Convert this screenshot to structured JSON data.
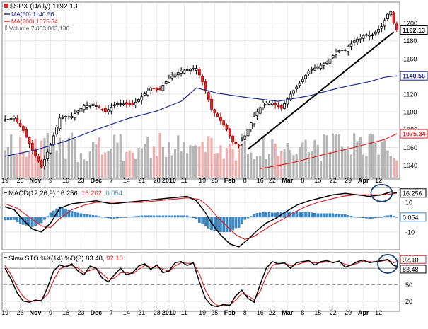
{
  "chart_data": [
    {
      "type": "candlestick",
      "symbol_label": "$SPX (Daily)",
      "last_value": "1192.13",
      "legend": [
        {
          "label": "MA(50)",
          "value": "1140.56",
          "color": "#1f2a8c"
        },
        {
          "label": "MA(200)",
          "value": "1075.34",
          "color": "#d8262b"
        },
        {
          "label": "Volume",
          "value": "7,063,003,136",
          "color": "#a9a9a9"
        }
      ],
      "price_axis": {
        "ticks": [
          1040,
          1060,
          1080,
          1100,
          1120,
          1140,
          1160,
          1180,
          1200
        ],
        "range": [
          1026,
          1222
        ],
        "markers": [
          {
            "text": "1192.13",
            "value": 1192.13,
            "color": "#000000"
          },
          {
            "text": "1140.56",
            "value": 1140.56,
            "color": "#1f2a8c"
          },
          {
            "text": "1075.34",
            "value": 1075.34,
            "color": "#d8262b"
          }
        ]
      },
      "x_labels": [
        "19",
        "26",
        "Nov",
        "9",
        "16",
        "23",
        "Dec",
        "7",
        "14",
        "21",
        "28",
        "2010",
        "11",
        "19",
        "25",
        "Feb",
        "8",
        "16",
        "22",
        "Mar",
        "8",
        "15",
        "22",
        "29",
        "Apr",
        "12"
      ],
      "x_label_days": [
        0,
        5,
        10,
        15,
        20,
        25,
        30,
        35,
        40,
        45,
        50,
        54,
        59,
        65,
        69,
        74,
        79,
        84,
        88,
        93,
        98,
        103,
        108,
        113,
        118,
        123
      ],
      "days": 130,
      "closes_pairs": [
        [
          0,
          1090
        ],
        [
          3,
          1094
        ],
        [
          6,
          1079
        ],
        [
          9,
          1057
        ],
        [
          12,
          1038
        ],
        [
          15,
          1063
        ],
        [
          18,
          1093
        ],
        [
          22,
          1095
        ],
        [
          26,
          1107
        ],
        [
          30,
          1107
        ],
        [
          33,
          1100
        ],
        [
          36,
          1108
        ],
        [
          39,
          1109
        ],
        [
          42,
          1108
        ],
        [
          45,
          1117
        ],
        [
          48,
          1127
        ],
        [
          51,
          1126
        ],
        [
          53,
          1134
        ],
        [
          56,
          1143
        ],
        [
          59,
          1147
        ],
        [
          63,
          1149
        ],
        [
          65,
          1134
        ],
        [
          68,
          1103
        ],
        [
          70,
          1095
        ],
        [
          73,
          1080
        ],
        [
          75,
          1066
        ],
        [
          77,
          1062
        ],
        [
          79,
          1073
        ],
        [
          82,
          1095
        ],
        [
          85,
          1110
        ],
        [
          88,
          1110
        ],
        [
          91,
          1104
        ],
        [
          94,
          1120
        ],
        [
          97,
          1132
        ],
        [
          100,
          1146
        ],
        [
          103,
          1151
        ],
        [
          106,
          1156
        ],
        [
          109,
          1167
        ],
        [
          112,
          1170
        ],
        [
          115,
          1180
        ],
        [
          118,
          1186
        ],
        [
          121,
          1187
        ],
        [
          124,
          1196
        ],
        [
          126,
          1210
        ],
        [
          127,
          1213
        ],
        [
          128,
          1200
        ],
        [
          129,
          1192.13
        ]
      ],
      "ma50_pairs": [
        [
          0,
          1050
        ],
        [
          10,
          1057
        ],
        [
          20,
          1067
        ],
        [
          30,
          1080
        ],
        [
          40,
          1092
        ],
        [
          50,
          1101
        ],
        [
          58,
          1112
        ],
        [
          63,
          1127
        ],
        [
          70,
          1121
        ],
        [
          80,
          1116
        ],
        [
          90,
          1112
        ],
        [
          100,
          1118
        ],
        [
          110,
          1127
        ],
        [
          120,
          1134
        ],
        [
          125,
          1139
        ],
        [
          129,
          1140.56
        ]
      ],
      "ma200_pairs": [
        [
          84,
          1036
        ],
        [
          95,
          1043
        ],
        [
          105,
          1052
        ],
        [
          115,
          1060
        ],
        [
          125,
          1069
        ],
        [
          129,
          1075.34
        ]
      ],
      "trendline_pairs": [
        [
          80,
          1058
        ],
        [
          128,
          1190
        ]
      ],
      "volume_seed": 17
    },
    {
      "type": "line",
      "label": "MACD(12,26,9)",
      "values": [
        "16.256",
        "16.202",
        "0.054"
      ],
      "colors": [
        "#000000",
        "#d8262b",
        "#3a8bc8"
      ],
      "y_ticks": [
        10,
        0,
        -10
      ],
      "range": [
        -21,
        19
      ],
      "markers": [
        {
          "text": "16.256",
          "value": 16.256
        },
        {
          "text": "0.054",
          "value": 0.054
        }
      ],
      "macd_pairs": [
        [
          0,
          7
        ],
        [
          3,
          5
        ],
        [
          6,
          -2
        ],
        [
          9,
          -8
        ],
        [
          12,
          -10
        ],
        [
          15,
          -4
        ],
        [
          18,
          6
        ],
        [
          22,
          9
        ],
        [
          26,
          10
        ],
        [
          30,
          11
        ],
        [
          35,
          9
        ],
        [
          40,
          10
        ],
        [
          45,
          11
        ],
        [
          50,
          12
        ],
        [
          55,
          13
        ],
        [
          60,
          14
        ],
        [
          63,
          11
        ],
        [
          66,
          3
        ],
        [
          68,
          -4
        ],
        [
          71,
          -12
        ],
        [
          74,
          -18
        ],
        [
          77,
          -20
        ],
        [
          80,
          -15
        ],
        [
          83,
          -9
        ],
        [
          86,
          -4
        ],
        [
          89,
          -1
        ],
        [
          92,
          3
        ],
        [
          96,
          8
        ],
        [
          100,
          11
        ],
        [
          104,
          13
        ],
        [
          108,
          15
        ],
        [
          112,
          16
        ],
        [
          116,
          15
        ],
        [
          120,
          14
        ],
        [
          124,
          15
        ],
        [
          127,
          17
        ],
        [
          129,
          16.256
        ]
      ],
      "signal_pairs": [
        [
          0,
          9
        ],
        [
          4,
          6
        ],
        [
          8,
          0
        ],
        [
          12,
          -6
        ],
        [
          15,
          -7
        ],
        [
          18,
          -1
        ],
        [
          22,
          5
        ],
        [
          26,
          8
        ],
        [
          30,
          10
        ],
        [
          35,
          10
        ],
        [
          40,
          10
        ],
        [
          45,
          10
        ],
        [
          50,
          11
        ],
        [
          55,
          12
        ],
        [
          60,
          13
        ],
        [
          64,
          12
        ],
        [
          67,
          7
        ],
        [
          70,
          0
        ],
        [
          73,
          -6
        ],
        [
          76,
          -12
        ],
        [
          79,
          -15
        ],
        [
          82,
          -13
        ],
        [
          85,
          -9
        ],
        [
          88,
          -5
        ],
        [
          91,
          -2
        ],
        [
          95,
          3
        ],
        [
          99,
          7
        ],
        [
          103,
          10
        ],
        [
          107,
          12
        ],
        [
          111,
          14
        ],
        [
          115,
          15
        ],
        [
          120,
          15
        ],
        [
          125,
          15
        ],
        [
          129,
          16.202
        ]
      ]
    },
    {
      "type": "line",
      "label": "Slow STO %K(14) %D(3)",
      "values": [
        "83.48",
        "92.10"
      ],
      "colors": [
        "#000000",
        "#d8262b"
      ],
      "y_ticks": [
        80,
        50,
        20
      ],
      "range": [
        4,
        106
      ],
      "markers": [
        {
          "text": "92.10",
          "value": 92.1
        },
        {
          "text": "83.48",
          "value": 83.48
        }
      ],
      "k_pairs": [
        [
          0,
          80
        ],
        [
          2,
          60
        ],
        [
          4,
          35
        ],
        [
          6,
          20
        ],
        [
          8,
          18
        ],
        [
          10,
          22
        ],
        [
          12,
          20
        ],
        [
          14,
          45
        ],
        [
          16,
          75
        ],
        [
          18,
          86
        ],
        [
          20,
          82
        ],
        [
          22,
          88
        ],
        [
          24,
          75
        ],
        [
          26,
          68
        ],
        [
          28,
          84
        ],
        [
          30,
          80
        ],
        [
          32,
          62
        ],
        [
          34,
          55
        ],
        [
          36,
          68
        ],
        [
          38,
          80
        ],
        [
          40,
          68
        ],
        [
          42,
          72
        ],
        [
          44,
          84
        ],
        [
          46,
          88
        ],
        [
          48,
          78
        ],
        [
          50,
          86
        ],
        [
          52,
          72
        ],
        [
          54,
          75
        ],
        [
          56,
          90
        ],
        [
          58,
          92
        ],
        [
          60,
          85
        ],
        [
          62,
          90
        ],
        [
          64,
          55
        ],
        [
          66,
          25
        ],
        [
          68,
          12
        ],
        [
          70,
          10
        ],
        [
          72,
          14
        ],
        [
          74,
          12
        ],
        [
          76,
          30
        ],
        [
          78,
          40
        ],
        [
          80,
          25
        ],
        [
          82,
          18
        ],
        [
          84,
          50
        ],
        [
          86,
          80
        ],
        [
          88,
          92
        ],
        [
          90,
          88
        ],
        [
          92,
          90
        ],
        [
          94,
          80
        ],
        [
          96,
          90
        ],
        [
          98,
          92
        ],
        [
          100,
          94
        ],
        [
          102,
          86
        ],
        [
          104,
          92
        ],
        [
          106,
          94
        ],
        [
          108,
          90
        ],
        [
          110,
          93
        ],
        [
          112,
          82
        ],
        [
          114,
          86
        ],
        [
          116,
          92
        ],
        [
          118,
          95
        ],
        [
          120,
          90
        ],
        [
          122,
          92
        ],
        [
          124,
          94
        ],
        [
          126,
          96
        ],
        [
          128,
          85
        ],
        [
          129,
          83.48
        ]
      ],
      "d_pairs": [
        [
          0,
          85
        ],
        [
          2,
          68
        ],
        [
          4,
          45
        ],
        [
          6,
          28
        ],
        [
          8,
          20
        ],
        [
          10,
          20
        ],
        [
          12,
          22
        ],
        [
          14,
          32
        ],
        [
          16,
          58
        ],
        [
          18,
          78
        ],
        [
          20,
          84
        ],
        [
          22,
          85
        ],
        [
          24,
          80
        ],
        [
          26,
          72
        ],
        [
          28,
          76
        ],
        [
          30,
          80
        ],
        [
          32,
          70
        ],
        [
          34,
          60
        ],
        [
          36,
          62
        ],
        [
          38,
          72
        ],
        [
          40,
          72
        ],
        [
          42,
          70
        ],
        [
          44,
          78
        ],
        [
          46,
          85
        ],
        [
          48,
          82
        ],
        [
          50,
          82
        ],
        [
          52,
          78
        ],
        [
          54,
          74
        ],
        [
          56,
          84
        ],
        [
          58,
          90
        ],
        [
          60,
          89
        ],
        [
          62,
          89
        ],
        [
          64,
          70
        ],
        [
          66,
          40
        ],
        [
          68,
          20
        ],
        [
          70,
          12
        ],
        [
          72,
          12
        ],
        [
          74,
          13
        ],
        [
          76,
          22
        ],
        [
          78,
          34
        ],
        [
          80,
          30
        ],
        [
          82,
          22
        ],
        [
          84,
          38
        ],
        [
          86,
          65
        ],
        [
          88,
          85
        ],
        [
          90,
          89
        ],
        [
          92,
          89
        ],
        [
          94,
          85
        ],
        [
          96,
          86
        ],
        [
          98,
          90
        ],
        [
          100,
          92
        ],
        [
          102,
          90
        ],
        [
          104,
          90
        ],
        [
          106,
          92
        ],
        [
          108,
          91
        ],
        [
          110,
          92
        ],
        [
          112,
          87
        ],
        [
          114,
          85
        ],
        [
          116,
          89
        ],
        [
          118,
          93
        ],
        [
          120,
          92
        ],
        [
          122,
          91
        ],
        [
          124,
          93
        ],
        [
          126,
          95
        ],
        [
          128,
          90
        ],
        [
          129,
          92.1
        ]
      ]
    }
  ]
}
